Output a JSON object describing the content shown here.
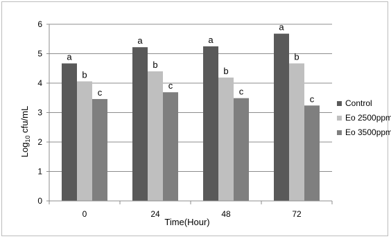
{
  "chart_data": {
    "type": "bar",
    "categories": [
      "0",
      "24",
      "48",
      "72"
    ],
    "series": [
      {
        "name": "Control",
        "values": [
          4.67,
          5.22,
          5.25,
          5.68
        ],
        "labels": [
          "a",
          "a",
          "a",
          "a"
        ],
        "color": "#595959"
      },
      {
        "name": "Eo 2500ppm",
        "values": [
          4.06,
          4.4,
          4.19,
          4.67
        ],
        "labels": [
          "b",
          "b",
          "b",
          "b"
        ],
        "color": "#bfbfbf"
      },
      {
        "name": "Eo 3500ppm",
        "values": [
          3.46,
          3.69,
          3.49,
          3.24
        ],
        "labels": [
          "c",
          "c",
          "c",
          "c"
        ],
        "color": "#7f7f7f"
      }
    ],
    "xlabel": "Time(Hour)",
    "ylabel_main": "Log",
    "ylabel_sub": "10",
    "ylabel_unit": " cfu/mL",
    "yticks": [
      "0",
      "1",
      "2",
      "3",
      "4",
      "5",
      "6"
    ],
    "ylim": [
      0,
      6
    ],
    "grid": true,
    "legend": "right"
  }
}
